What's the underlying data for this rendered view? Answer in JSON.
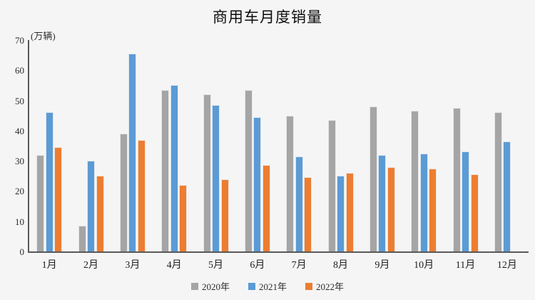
{
  "chart_data": {
    "type": "bar",
    "title": "商用车月度销量",
    "unit_label": "(万辆)",
    "categories": [
      "1月",
      "2月",
      "3月",
      "4月",
      "5月",
      "6月",
      "7月",
      "8月",
      "9月",
      "10月",
      "11月",
      "12月"
    ],
    "series": [
      {
        "name": "2020年",
        "color": "#a5a5a5",
        "values": [
          32,
          8.5,
          39,
          53.5,
          52,
          53.5,
          45,
          43.5,
          48,
          46.5,
          47.5,
          46
        ]
      },
      {
        "name": "2021年",
        "color": "#5b9bd5",
        "values": [
          46,
          30,
          65.5,
          55,
          48.5,
          44.5,
          31.5,
          25,
          32,
          32.5,
          33,
          36.5
        ]
      },
      {
        "name": "2022年",
        "color": "#ed7d31",
        "values": [
          34.5,
          25,
          37,
          22,
          24,
          28.5,
          24.5,
          26,
          28,
          27.5,
          25.5,
          null
        ]
      }
    ],
    "ylim": [
      0,
      70
    ],
    "yticks": [
      0,
      10,
      20,
      30,
      40,
      50,
      60,
      70
    ],
    "grid": false,
    "legend_position": "bottom",
    "colors": {
      "background": "#f5f5f6",
      "axis": "#595959",
      "text": "#2b2b2b"
    }
  }
}
